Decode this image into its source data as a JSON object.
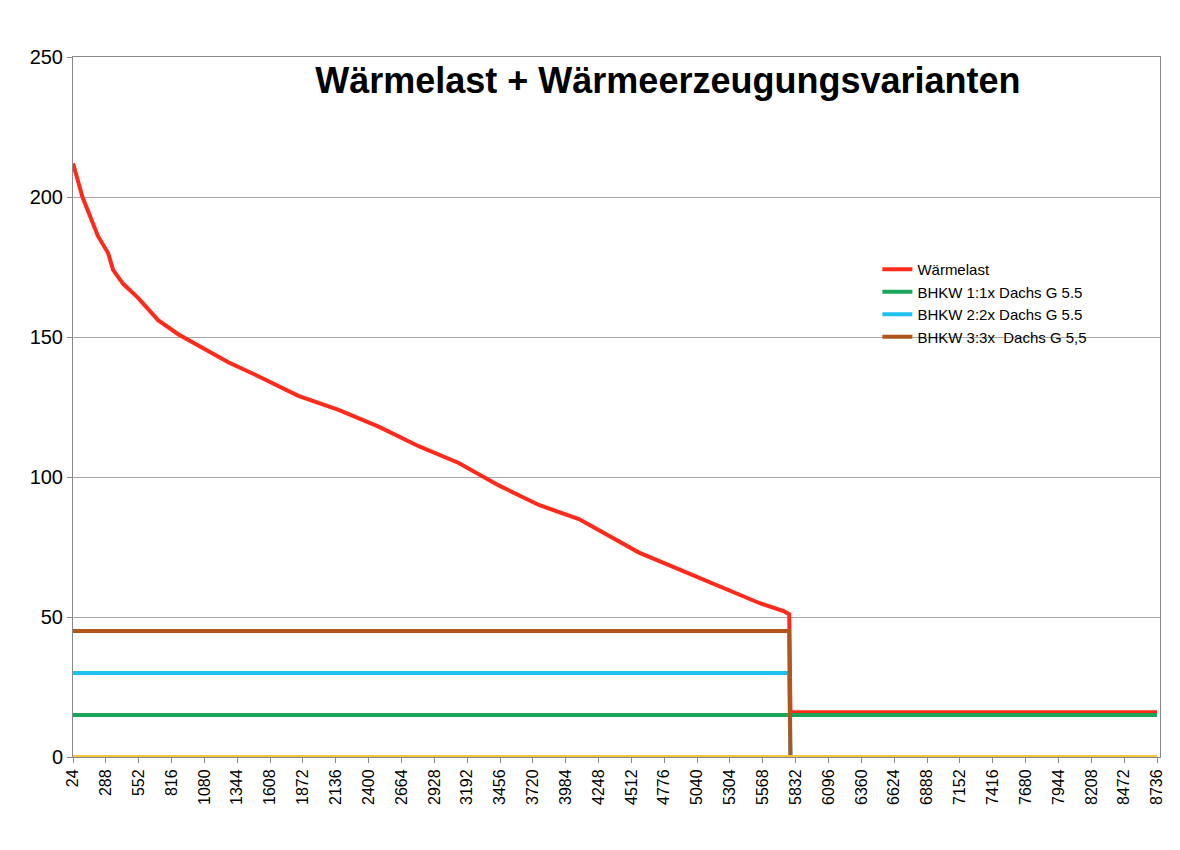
{
  "chart_data": {
    "type": "line",
    "title": "Wärmelast + Wärmeerzeugungsvarianten",
    "x": [
      24,
      100,
      225,
      306,
      346,
      427,
      547,
      708,
      869,
      1030,
      1272,
      1513,
      1835,
      2158,
      2480,
      2802,
      3124,
      3446,
      3768,
      4090,
      4251,
      4573,
      4895,
      5217,
      5539,
      5740,
      5780,
      5790,
      8736
    ],
    "series": [
      {
        "name": "Wärmelast",
        "color": "#ff2a1a",
        "values": [
          212,
          200,
          186,
          180,
          174,
          169,
          164,
          156,
          151,
          147,
          141,
          136,
          129,
          124,
          118,
          111,
          105,
          97,
          90,
          85,
          81,
          73,
          67,
          61,
          55,
          52,
          51,
          16,
          16
        ]
      },
      {
        "name": "BHKW 1:1x Dachs G 5.5",
        "color": "#1aa55a",
        "values": [
          15,
          15,
          15,
          15,
          15,
          15,
          15,
          15,
          15,
          15,
          15,
          15,
          15,
          15,
          15,
          15,
          15,
          15,
          15,
          15,
          15,
          15,
          15,
          15,
          15,
          15,
          15,
          15,
          15
        ]
      },
      {
        "name": "BHKW 2:2x Dachs G 5.5",
        "color": "#1ec0f0",
        "values": [
          30,
          30,
          30,
          30,
          30,
          30,
          30,
          30,
          30,
          30,
          30,
          30,
          30,
          30,
          30,
          30,
          30,
          30,
          30,
          30,
          30,
          30,
          30,
          30,
          30,
          30,
          30,
          0,
          null
        ]
      },
      {
        "name": "BHKW 3:3x  Dachs G 5,5",
        "color": "#b0561c",
        "values": [
          45,
          45,
          45,
          45,
          45,
          45,
          45,
          45,
          45,
          45,
          45,
          45,
          45,
          45,
          45,
          45,
          45,
          45,
          45,
          45,
          45,
          45,
          45,
          45,
          45,
          45,
          45,
          0,
          null
        ]
      },
      {
        "color": "#f5c542",
        "values": [
          0,
          0,
          0,
          0,
          0,
          0,
          0,
          0,
          0,
          0,
          0,
          0,
          0,
          0,
          0,
          0,
          0,
          0,
          0,
          0,
          0,
          0,
          0,
          0,
          0,
          0,
          0,
          0,
          0
        ]
      }
    ],
    "xlim": [
      24,
      8760
    ],
    "xticks": [
      24,
      288,
      552,
      816,
      1080,
      1344,
      1608,
      1872,
      2136,
      2400,
      2664,
      2928,
      3192,
      3456,
      3720,
      3984,
      4248,
      4512,
      4776,
      5040,
      5304,
      5568,
      5832,
      6096,
      6360,
      6624,
      6888,
      7152,
      7416,
      7680,
      7944,
      8208,
      8472,
      8736
    ],
    "ylim": [
      0,
      250
    ],
    "yticks": [
      0,
      50,
      100,
      150,
      200,
      250
    ],
    "grid": true,
    "legend": "right"
  }
}
